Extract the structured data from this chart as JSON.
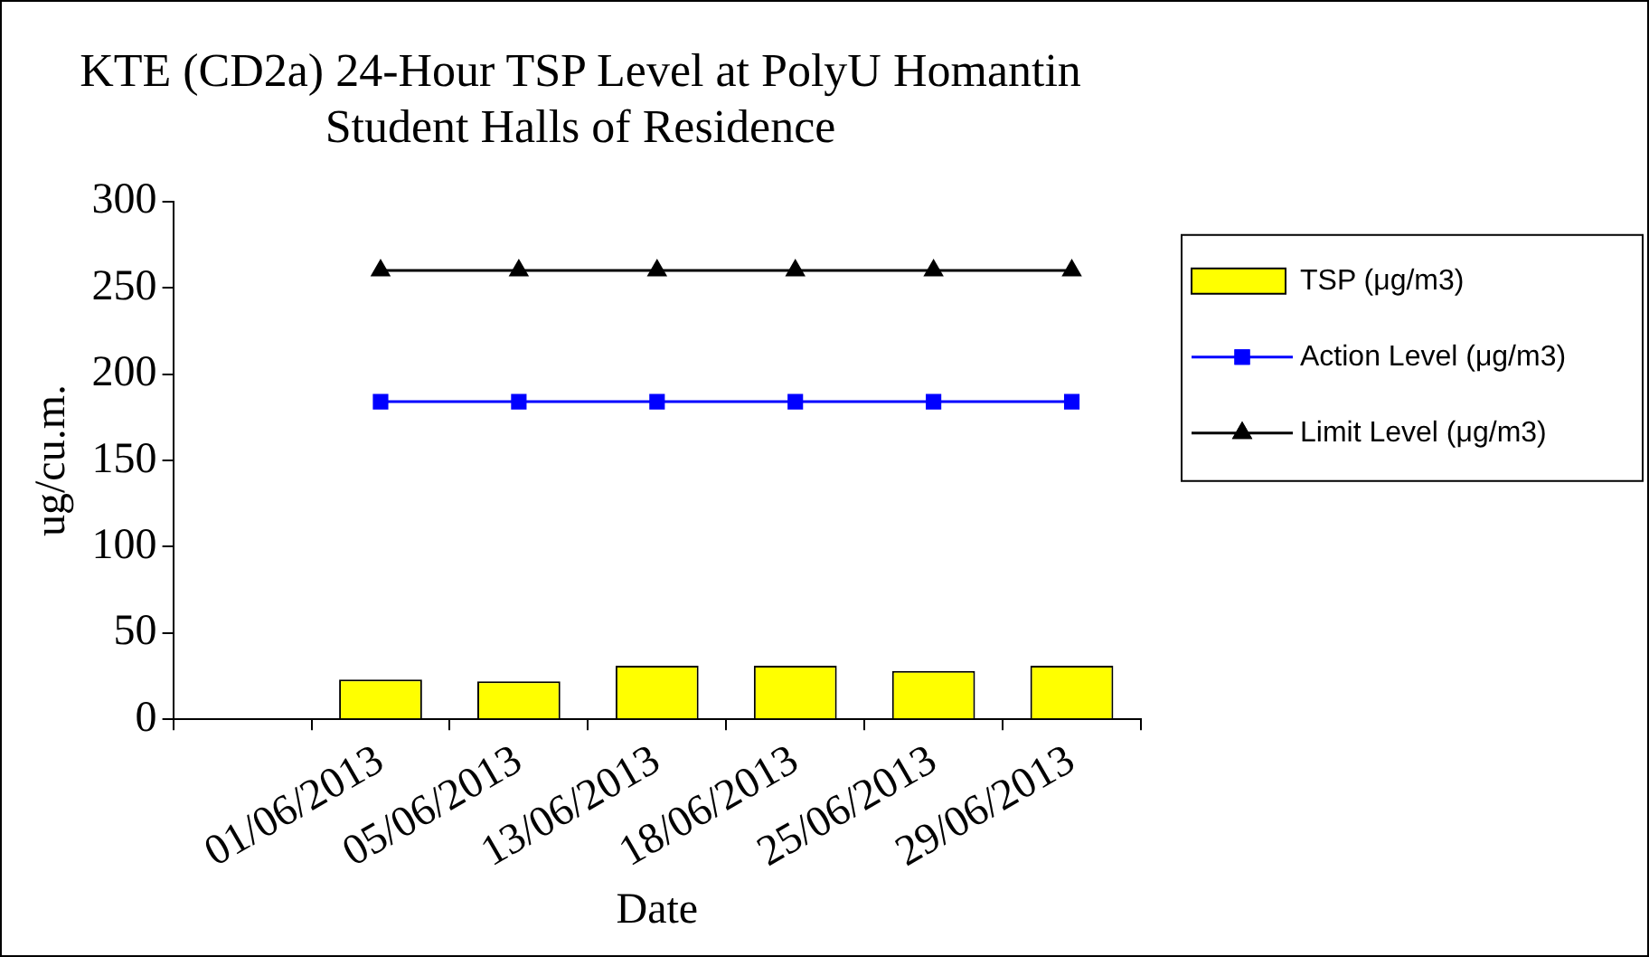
{
  "chart_data": {
    "type": "bar",
    "title": [
      "KTE (CD2a) 24-Hour TSP Level at PolyU Homantin",
      "Student Halls of Residence"
    ],
    "xlabel": "Date",
    "ylabel": "ug/cu.m.",
    "categories": [
      null,
      "01/06/2013",
      "05/06/2013",
      "13/06/2013",
      "18/06/2013",
      "25/06/2013",
      "29/06/2013"
    ],
    "series": [
      {
        "name": "TSP (μg/m3)",
        "type": "bar",
        "color": "#ffff00",
        "values": [
          null,
          23,
          22,
          31,
          31,
          28,
          31
        ]
      },
      {
        "name": "Action Level (μg/m3)",
        "type": "line",
        "color": "#0000ff",
        "marker": "square",
        "values": [
          null,
          184,
          184,
          184,
          184,
          184,
          184
        ]
      },
      {
        "name": "Limit Level (μg/m3)",
        "type": "line",
        "color": "#000000",
        "marker": "triangle",
        "values": [
          null,
          260,
          260,
          260,
          260,
          260,
          260
        ]
      }
    ],
    "ylim": [
      0,
      300
    ],
    "yticks": [
      0,
      50,
      100,
      150,
      200,
      250,
      300
    ],
    "grid": false,
    "legend": "right"
  }
}
